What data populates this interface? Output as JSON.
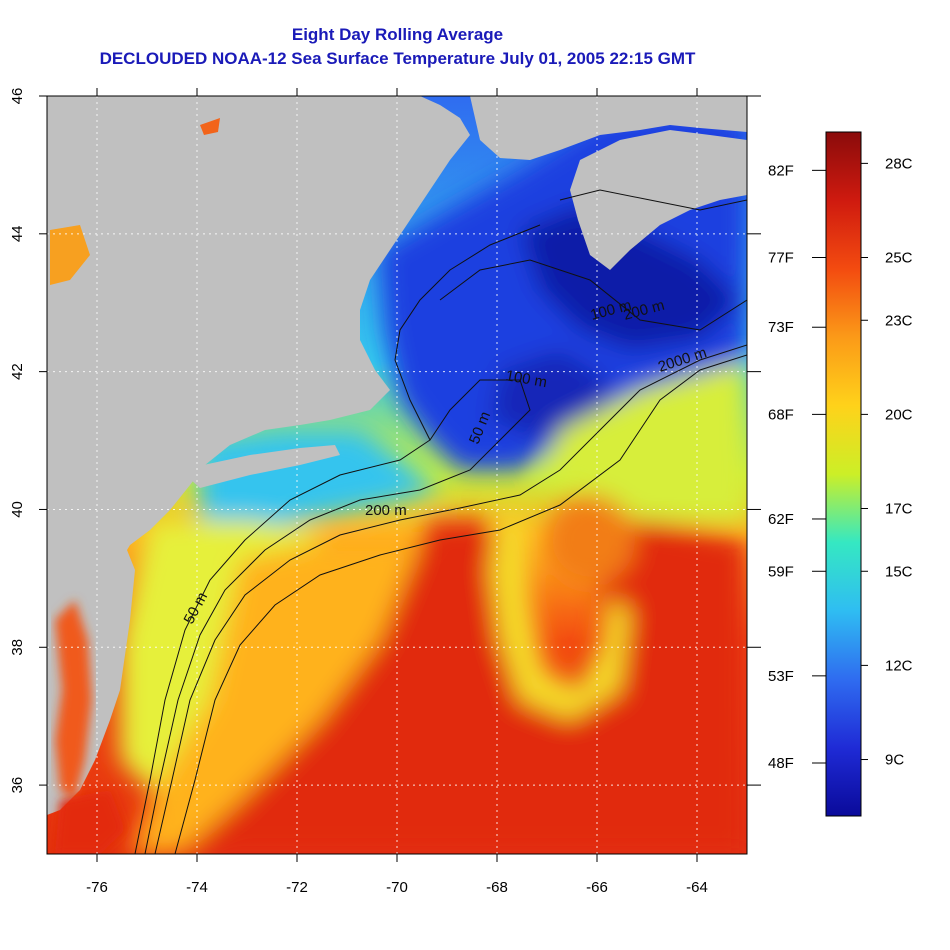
{
  "title": "Eight Day Rolling Average",
  "subtitle": "DECLOUDED NOAA-12 Sea Surface Temperature July 01, 2005 22:15 GMT",
  "map": {
    "x_axis": {
      "range": [
        -77,
        -63
      ],
      "tick_labels": [
        "-76",
        "-74",
        "-72",
        "-70",
        "-68",
        "-66",
        "-64"
      ]
    },
    "y_axis": {
      "range": [
        35,
        46
      ],
      "tick_labels": [
        "36",
        "38",
        "40",
        "42",
        "44",
        "46"
      ]
    },
    "contour_labels": [
      "50 m",
      "200 m",
      "2000 m",
      "100 m",
      "200 m",
      "50 m",
      "100 m"
    ],
    "land_color": "#c0c0c0",
    "grid": "dotted-white"
  },
  "colorbar": {
    "fahrenheit_labels": [
      "82F",
      "77F",
      "73F",
      "68F",
      "62F",
      "59F",
      "53F",
      "48F"
    ],
    "celsius_labels": [
      "28C",
      "25C",
      "23C",
      "20C",
      "17C",
      "15C",
      "12C",
      "9C"
    ],
    "scale_colors": [
      "#0a0a9a",
      "#1f2bd6",
      "#2f6cf0",
      "#2fbdf2",
      "#35e8c2",
      "#ccef27",
      "#ffd21a",
      "#fb9a18",
      "#f34b10",
      "#cf1a0f",
      "#8a0b0b"
    ]
  }
}
